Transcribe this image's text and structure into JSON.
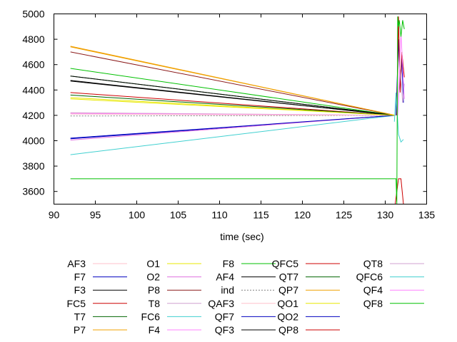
{
  "chart_data": {
    "type": "line",
    "xlabel": "time (sec)",
    "ylabel": "",
    "xlim": [
      90,
      135
    ],
    "ylim": [
      3500,
      5000
    ],
    "xticks": [
      "90",
      "95",
      "100",
      "105",
      "110",
      "115",
      "120",
      "125",
      "130",
      "135"
    ],
    "yticks": [
      "3600",
      "3800",
      "4000",
      "4200",
      "4400",
      "4600",
      "4800",
      "5000"
    ],
    "grid": false,
    "legend_position": "bottom",
    "legend_columns": [
      [
        "AF3",
        "F7",
        "F3",
        "FC5",
        "T7",
        "P7"
      ],
      [
        "O1",
        "O2",
        "P8",
        "T8",
        "FC6",
        "F4"
      ],
      [
        "F8",
        "AF4",
        "ind",
        "QAF3",
        "QF7",
        "QF3"
      ],
      [
        "QFC5",
        "QT7",
        "QP7",
        "QO1",
        "QO2",
        "QP8"
      ],
      [
        "QT8",
        "QFC6",
        "QF4",
        "QF8"
      ]
    ],
    "series": [
      {
        "name": "AF3",
        "color": "#ffc0cb",
        "x": [
          92,
          131.2
        ],
        "y": [
          4220,
          4200
        ]
      },
      {
        "name": "F7",
        "color": "#0000c0",
        "x": [
          92,
          131.2
        ],
        "y": [
          4015,
          4200
        ]
      },
      {
        "name": "F3",
        "color": "#000000",
        "x": [
          92,
          131.2
        ],
        "y": [
          4470,
          4200
        ]
      },
      {
        "name": "FC5",
        "color": "#cc0000",
        "x": [
          92,
          131.2
        ],
        "y": [
          4380,
          4200
        ]
      },
      {
        "name": "T7",
        "color": "#006400",
        "x": [
          92,
          131.2
        ],
        "y": [
          4510,
          4200
        ]
      },
      {
        "name": "P7",
        "color": "#f0a000",
        "x": [
          92,
          131.2
        ],
        "y": [
          4740,
          4200
        ]
      },
      {
        "name": "O1",
        "color": "#e8e800",
        "x": [
          92,
          131.2
        ],
        "y": [
          4340,
          4200
        ]
      },
      {
        "name": "O2",
        "color": "#e070e0",
        "x": [
          92,
          131.2
        ],
        "y": [
          4005,
          4200
        ]
      },
      {
        "name": "P8",
        "color": "#8b1a1a",
        "x": [
          92,
          131.2
        ],
        "y": [
          4700,
          4200
        ]
      },
      {
        "name": "T8",
        "color": "#d0a0d0",
        "x": [
          92,
          131.2
        ],
        "y": [
          4220,
          4200
        ]
      },
      {
        "name": "FC6",
        "color": "#40d0d0",
        "x": [
          92,
          131.2
        ],
        "y": [
          3890,
          4200
        ]
      },
      {
        "name": "F4",
        "color": "#ff80ff",
        "x": [
          92,
          131.2
        ],
        "y": [
          4215,
          4200
        ]
      },
      {
        "name": "F8",
        "color": "#00c000",
        "x": [
          92,
          131.2
        ],
        "y": [
          4570,
          4200
        ]
      },
      {
        "name": "AF4",
        "color": "#000000",
        "x": [
          92,
          131.2
        ],
        "y": [
          4510,
          4200
        ]
      },
      {
        "name": "ind",
        "color": "#808080",
        "dashed": true,
        "x": [
          92,
          131.2
        ],
        "y": [
          4195,
          4200
        ]
      },
      {
        "name": "QAF3",
        "color": "#ffc0cb",
        "x": [
          92,
          131.2
        ],
        "y": [
          4210,
          4200
        ]
      },
      {
        "name": "QF7",
        "color": "#0000c0",
        "x": [
          92,
          131.2
        ],
        "y": [
          4020,
          4200
        ]
      },
      {
        "name": "QF3",
        "color": "#000000",
        "x": [
          92,
          131.2
        ],
        "y": [
          4475,
          4200
        ]
      },
      {
        "name": "QFC5",
        "color": "#cc0000",
        "x": [
          131.2,
          131.6,
          131.9,
          132.2,
          132.4
        ],
        "y": [
          3500,
          3700,
          3700,
          3500,
          3500
        ]
      },
      {
        "name": "QT7",
        "color": "#006400",
        "x": [
          92,
          131.2
        ],
        "y": [
          4360,
          4200
        ]
      },
      {
        "name": "QP7",
        "color": "#f0a000",
        "x": [
          92,
          131.2
        ],
        "y": [
          4745,
          4200
        ]
      },
      {
        "name": "QO1",
        "color": "#e8e800",
        "x": [
          92,
          131.2
        ],
        "y": [
          4330,
          4200
        ]
      },
      {
        "name": "QO2",
        "color": "#0000c0",
        "x": [
          131.3,
          131.6,
          131.8,
          132.0,
          132.2
        ],
        "y": [
          4200,
          4800,
          4400,
          4650,
          4300
        ]
      },
      {
        "name": "QP8",
        "color": "#cc0000",
        "x": [
          131.4,
          131.6,
          131.8,
          132.0,
          132.3
        ],
        "y": [
          4200,
          4980,
          4380,
          4700,
          4500
        ]
      },
      {
        "name": "QT8",
        "color": "#d0a0d0",
        "x": [
          131.5,
          131.8,
          132.1,
          132.3
        ],
        "y": [
          4200,
          4560,
          4300,
          4450
        ]
      },
      {
        "name": "QFC6",
        "color": "#40d0d0",
        "x": [
          131.1,
          131.3,
          131.6,
          131.9,
          132.2
        ],
        "y": [
          4150,
          4380,
          4050,
          3990,
          4010
        ]
      },
      {
        "name": "QF4",
        "color": "#ff80ff",
        "x": [
          131.5,
          131.9,
          132.3
        ],
        "y": [
          4200,
          4850,
          4330
        ]
      },
      {
        "name": "QF8",
        "color": "#00c000",
        "x": [
          92,
          131.3,
          131.4,
          131.5,
          131.6,
          131.7,
          131.9,
          132.1,
          132.3
        ],
        "y": [
          3700,
          3700,
          3500,
          4980,
          4900,
          4950,
          4820,
          4950,
          4880
        ]
      }
    ]
  }
}
